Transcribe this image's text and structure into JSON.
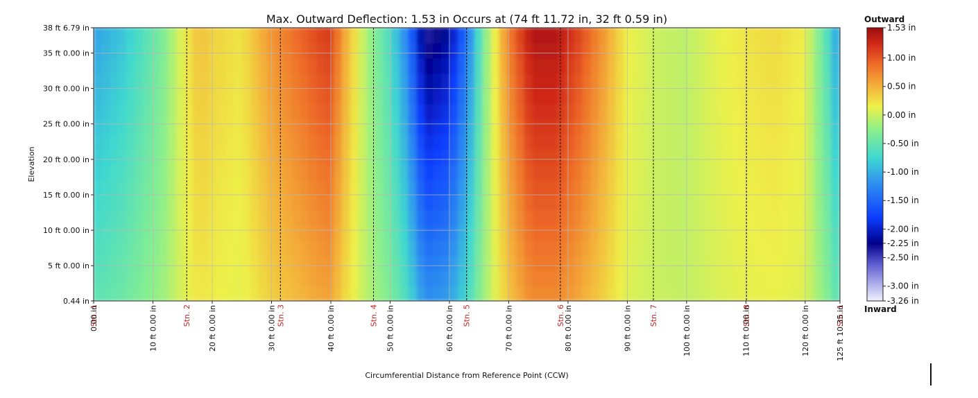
{
  "chart_data": {
    "type": "heatmap",
    "title": "Max. Outward Deflection: 1.53 in Occurs at (74 ft 11.72 in, 32 ft 0.59 in)",
    "xlabel": "Circumferential Distance from Reference Point (CCW)",
    "ylabel": "Elevation",
    "xlim": [
      0,
      125.8625
    ],
    "ylim": [
      0.0367,
      38.5658
    ],
    "x_ticks": [
      {
        "value": 0,
        "label": "0.00 in"
      },
      {
        "value": 10,
        "label": "10 ft 0.00 in"
      },
      {
        "value": 20,
        "label": "20 ft 0.00 in"
      },
      {
        "value": 30,
        "label": "30 ft 0.00 in"
      },
      {
        "value": 40,
        "label": "40 ft 0.00 in"
      },
      {
        "value": 50,
        "label": "50 ft 0.00 in"
      },
      {
        "value": 60,
        "label": "60 ft 0.00 in"
      },
      {
        "value": 70,
        "label": "70 ft 0.00 in"
      },
      {
        "value": 80,
        "label": "80 ft 0.00 in"
      },
      {
        "value": 90,
        "label": "90 ft 0.00 in"
      },
      {
        "value": 100,
        "label": "100 ft 0.00 in"
      },
      {
        "value": 110,
        "label": "110 ft 0.00 in"
      },
      {
        "value": 120,
        "label": "120 ft 0.00 in"
      },
      {
        "value": 125.8625,
        "label": "125 ft 10.35 in"
      }
    ],
    "y_ticks": [
      {
        "value": 0.0367,
        "label": "0.44 in"
      },
      {
        "value": 5,
        "label": "5 ft 0.00 in"
      },
      {
        "value": 10,
        "label": "10 ft 0.00 in"
      },
      {
        "value": 15,
        "label": "15 ft 0.00 in"
      },
      {
        "value": 20,
        "label": "20 ft 0.00 in"
      },
      {
        "value": 25,
        "label": "25 ft 0.00 in"
      },
      {
        "value": 30,
        "label": "30 ft 0.00 in"
      },
      {
        "value": 35,
        "label": "35 ft 0.00 in"
      },
      {
        "value": 38.5658,
        "label": "38 ft 6.79 in"
      }
    ],
    "stations": [
      {
        "label": "Stn. 1",
        "x": 0
      },
      {
        "label": "Stn. 2",
        "x": 15.7
      },
      {
        "label": "Stn. 3",
        "x": 31.5
      },
      {
        "label": "Stn. 4",
        "x": 47.2
      },
      {
        "label": "Stn. 5",
        "x": 62.9
      },
      {
        "label": "Stn. 6",
        "x": 78.7
      },
      {
        "label": "Stn. 7",
        "x": 94.4
      },
      {
        "label": "Stn. 8",
        "x": 110.1
      },
      {
        "label": "Stn. 1",
        "x": 125.8625
      }
    ],
    "deflection_profile": {
      "x": [
        0,
        5,
        8,
        12,
        15,
        18,
        20,
        25,
        30,
        34,
        38,
        40,
        42,
        46,
        50,
        53,
        56,
        60,
        63,
        66,
        70,
        74,
        78,
        82,
        86,
        90,
        95,
        100,
        105,
        110,
        115,
        120,
        124,
        125.8625
      ],
      "value": [
        -1.0,
        -0.8,
        -0.6,
        -0.3,
        0.1,
        0.4,
        0.3,
        0.2,
        0.6,
        0.8,
        1.0,
        1.05,
        0.6,
        -0.1,
        -0.6,
        -1.2,
        -2.2,
        -2.0,
        -1.3,
        -0.3,
        0.7,
        1.3,
        1.3,
        1.0,
        0.6,
        0.15,
        0.0,
        -0.05,
        0.1,
        0.2,
        0.25,
        0.15,
        -0.6,
        -1.1
      ]
    },
    "max_point": {
      "x": 74.9767,
      "y": 32.0492,
      "value": 1.53
    },
    "colorbar": {
      "title_top": "Outward",
      "title_bottom": "Inward",
      "min": -3.26,
      "max": 1.53,
      "ticks": [
        {
          "value": 1.53,
          "label": "1.53 in"
        },
        {
          "value": 1.0,
          "label": "1.00 in"
        },
        {
          "value": 0.5,
          "label": "0.50 in"
        },
        {
          "value": 0.0,
          "label": "0.00 in"
        },
        {
          "value": -0.5,
          "label": "-0.50 in"
        },
        {
          "value": -1.0,
          "label": "-1.00 in"
        },
        {
          "value": -1.5,
          "label": "-1.50 in"
        },
        {
          "value": -2.0,
          "label": "-2.00 in"
        },
        {
          "value": -2.25,
          "label": "-2.25 in"
        },
        {
          "value": -2.5,
          "label": "-2.50 in"
        },
        {
          "value": -3.0,
          "label": "-3.00 in"
        },
        {
          "value": -3.26,
          "label": "-3.26 in"
        }
      ],
      "stops": [
        {
          "value": -3.26,
          "color": "#f2f2ff"
        },
        {
          "value": -2.6,
          "color": "#5a5ad0"
        },
        {
          "value": -2.25,
          "color": "#00008a"
        },
        {
          "value": -1.8,
          "color": "#0d3dff"
        },
        {
          "value": -1.2,
          "color": "#2f90f0"
        },
        {
          "value": -0.75,
          "color": "#3fd8d0"
        },
        {
          "value": -0.25,
          "color": "#8df08a"
        },
        {
          "value": 0.15,
          "color": "#eef048"
        },
        {
          "value": 0.5,
          "color": "#f4b23a"
        },
        {
          "value": 0.9,
          "color": "#ee6a28"
        },
        {
          "value": 1.25,
          "color": "#d02818"
        },
        {
          "value": 1.53,
          "color": "#9c0e0e"
        }
      ]
    },
    "grid": true,
    "station_line_style": "dashed",
    "station_label_color": "#cc2222"
  }
}
